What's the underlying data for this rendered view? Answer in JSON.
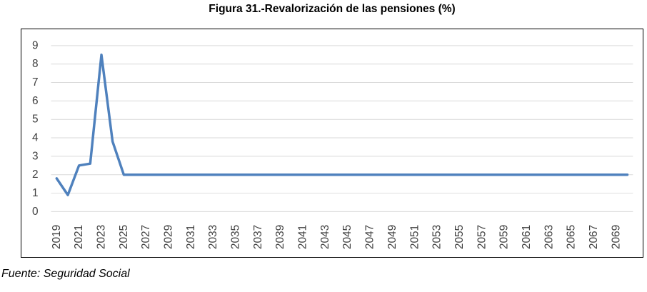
{
  "figure": {
    "title": "Figura 31.-Revalorización de las pensiones (%)",
    "source": "Fuente: Seguridad Social"
  },
  "chart_data": {
    "type": "line",
    "title": "Figura 31.-Revalorización de las pensiones (%)",
    "x": [
      2019,
      2020,
      2021,
      2022,
      2023,
      2024,
      2025,
      2026,
      2027,
      2028,
      2029,
      2030,
      2031,
      2032,
      2033,
      2034,
      2035,
      2036,
      2037,
      2038,
      2039,
      2040,
      2041,
      2042,
      2043,
      2044,
      2045,
      2046,
      2047,
      2048,
      2049,
      2050,
      2051,
      2052,
      2053,
      2054,
      2055,
      2056,
      2057,
      2058,
      2059,
      2060,
      2061,
      2062,
      2063,
      2064,
      2065,
      2066,
      2067,
      2068,
      2069,
      2070
    ],
    "series": [
      {
        "name": "Revalorización de las pensiones (%)",
        "values": [
          1.8,
          0.9,
          2.5,
          2.6,
          8.5,
          3.8,
          2,
          2,
          2,
          2,
          2,
          2,
          2,
          2,
          2,
          2,
          2,
          2,
          2,
          2,
          2,
          2,
          2,
          2,
          2,
          2,
          2,
          2,
          2,
          2,
          2,
          2,
          2,
          2,
          2,
          2,
          2,
          2,
          2,
          2,
          2,
          2,
          2,
          2,
          2,
          2,
          2,
          2,
          2,
          2,
          2,
          2
        ]
      }
    ],
    "xlabel": "",
    "ylabel": "",
    "ylim": [
      0,
      9
    ],
    "y_ticks": [
      0,
      1,
      2,
      3,
      4,
      5,
      6,
      7,
      8,
      9
    ],
    "x_tick_labels": [
      "2019",
      "2021",
      "2023",
      "2025",
      "2027",
      "2029",
      "2031",
      "2033",
      "2035",
      "2037",
      "2039",
      "2041",
      "2043",
      "2045",
      "2047",
      "2049",
      "2051",
      "2053",
      "2055",
      "2057",
      "2059",
      "2061",
      "2063",
      "2065",
      "2067",
      "2069"
    ],
    "x_tick_step": 2,
    "grid": true,
    "legend": "none",
    "line_color": "#4F81BD",
    "gridline_color": "#D9D9D9",
    "axis_label_color": "#404040",
    "frame_color": "#000000"
  }
}
